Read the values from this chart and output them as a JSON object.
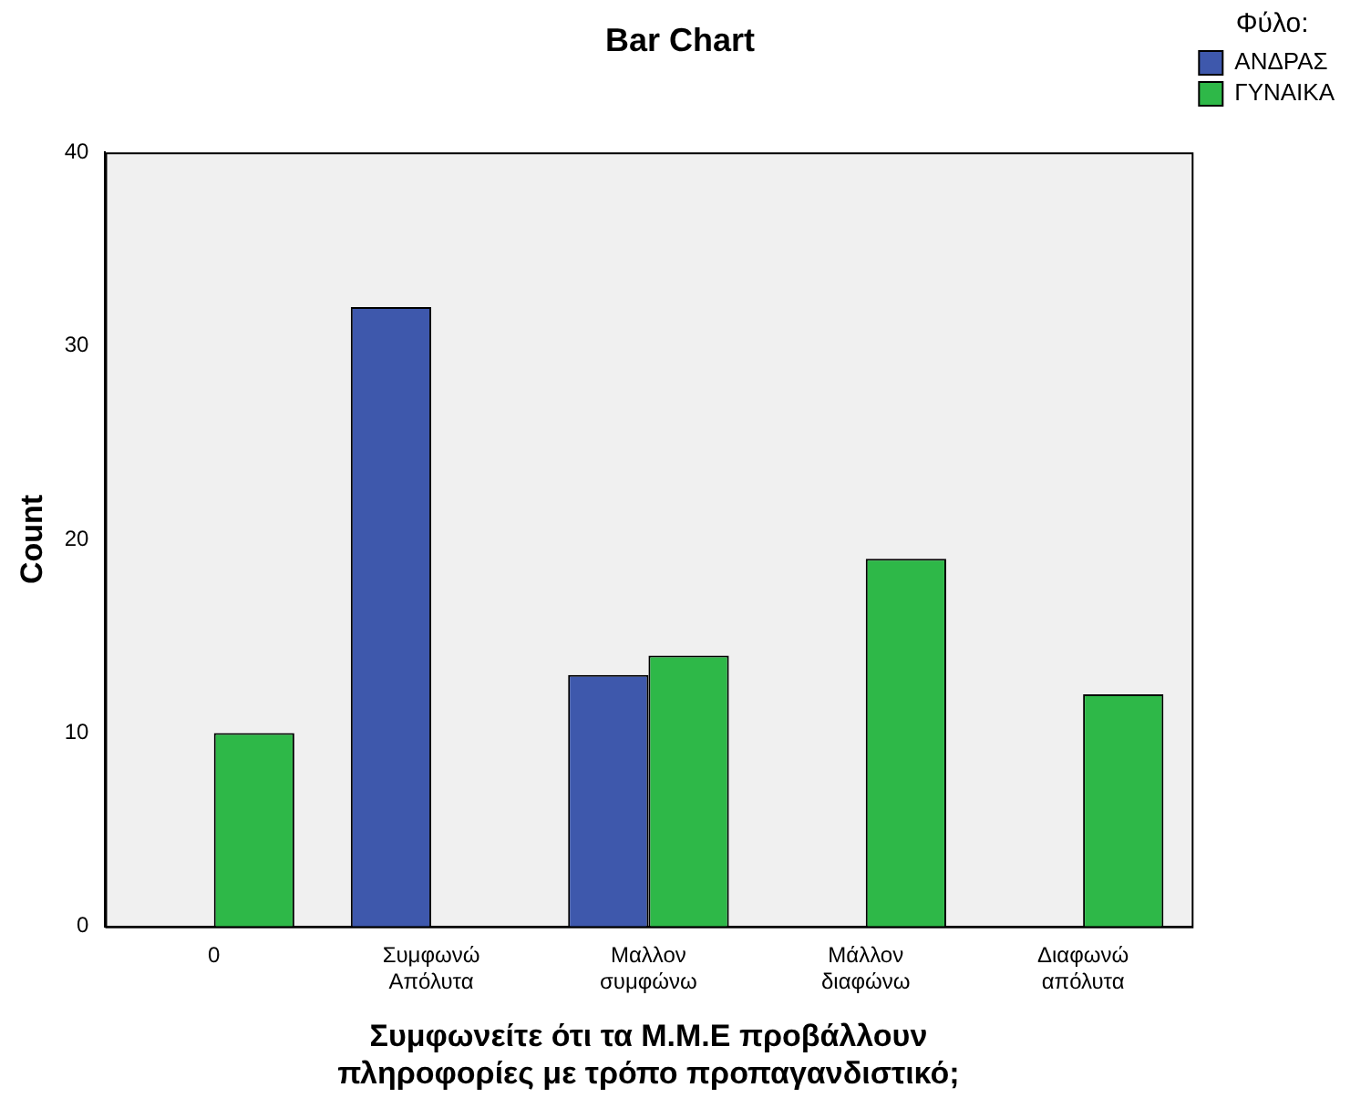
{
  "chart_data": {
    "type": "bar",
    "title": "Bar Chart",
    "xlabel": "Συμφωνείτε ότι τα Μ.Μ.Ε προβάλλουν πληροφορίες με τρόπο προπαγανδιστικό;",
    "ylabel": "Count",
    "legend_title": "Φύλο:",
    "categories": [
      "0",
      "Συμφωνώ Απόλυτα",
      "Μαλλον συμφώνω",
      "Μάλλον διαφώνω",
      "Διαφωνώ απόλυτα"
    ],
    "series": [
      {
        "name": "ΑΝΔΡΑΣ",
        "color": "#3e58ac",
        "values": [
          null,
          32,
          13,
          null,
          null
        ]
      },
      {
        "name": "ΓΥΝΑΙΚΑ",
        "color": "#2eb848",
        "values": [
          10,
          null,
          14,
          19,
          12
        ]
      }
    ],
    "ylim": [
      0,
      40
    ],
    "yticks": [
      0,
      10,
      20,
      30,
      40
    ],
    "grid": false,
    "legend": "top right"
  }
}
